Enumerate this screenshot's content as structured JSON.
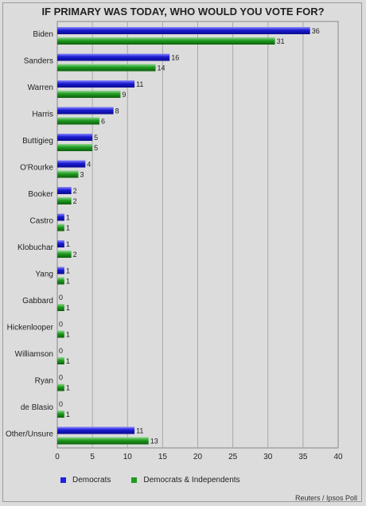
{
  "chart_data": {
    "type": "bar",
    "orientation": "horizontal",
    "title": "IF PRIMARY WAS TODAY, WHO WOULD YOU VOTE FOR?",
    "categories": [
      "Biden",
      "Sanders",
      "Warren",
      "Harris",
      "Buttigieg",
      "O'Rourke",
      "Booker",
      "Castro",
      "Klobuchar",
      "Yang",
      "Gabbard",
      "Hickenlooper",
      "Williamson",
      "Ryan",
      "de Blasio",
      "Other/Unsure"
    ],
    "series": [
      {
        "name": "Democrats",
        "color": "#2020e0",
        "values": [
          36,
          16,
          11,
          8,
          5,
          4,
          2,
          1,
          1,
          1,
          0,
          0,
          0,
          0,
          0,
          11
        ]
      },
      {
        "name": "Democrats & Independents",
        "color": "#1f9a1f",
        "values": [
          31,
          14,
          9,
          6,
          5,
          3,
          2,
          1,
          2,
          1,
          1,
          1,
          1,
          1,
          1,
          13
        ]
      }
    ],
    "xlim": [
      0,
      40
    ],
    "xticks": [
      0,
      5,
      10,
      15,
      20,
      25,
      30,
      35,
      40
    ],
    "grid": true,
    "legend": "bottom-left"
  },
  "source": "Reuters / Ipsos Poll"
}
